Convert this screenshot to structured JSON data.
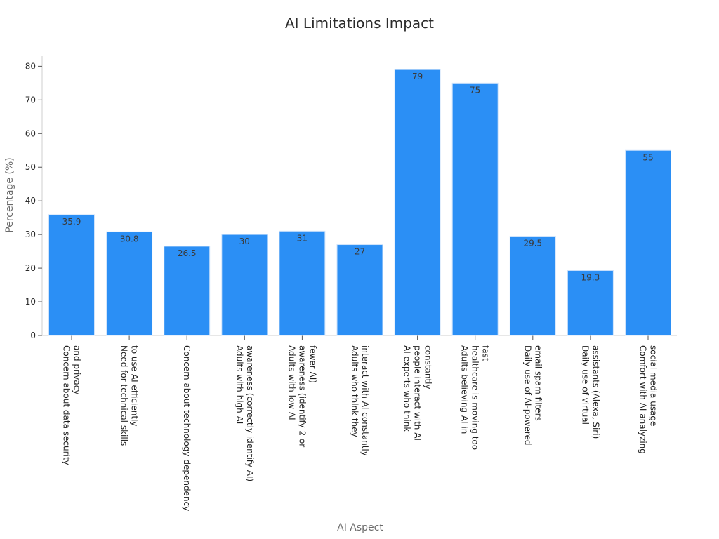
{
  "chart_data": {
    "type": "bar",
    "title": "AI Limitations Impact",
    "xlabel": "AI Aspect",
    "ylabel": "Percentage (%)",
    "ylim": [
      0,
      83
    ],
    "yticks": [
      0,
      10,
      20,
      30,
      40,
      50,
      60,
      70,
      80
    ],
    "grid": false,
    "bar_color": "#2b8ff5",
    "categories": [
      "Concern about data security and privacy",
      "Need for technical skills to use AI efficiently",
      "Concern about technology dependency",
      "Adults with high AI awareness (correctly identify AI)",
      "Adults with low AI awareness (identify 2 or fewer AI)",
      "Adults who think they interact with AI constantly",
      "AI experts who think people interact with AI constantly",
      "Adults believing AI in healthcare is moving too fast",
      "Daily use of AI-powered email spam filters",
      "Daily use of virtual assistants (Alexa, Siri)",
      "Comfort with AI analyzing social media usage"
    ],
    "category_label_lines": [
      [
        "Concern about data security",
        "and privacy"
      ],
      [
        "Need for technical skills",
        "to use AI efficiently"
      ],
      [
        "Concern about technology dependency"
      ],
      [
        "Adults with high AI",
        "awareness (correctly identify AI)"
      ],
      [
        "Adults with low AI",
        "awareness (identify 2 or",
        "fewer AI)"
      ],
      [
        "Adults who think they",
        "interact with AI constantly"
      ],
      [
        "AI experts who think",
        "people interact with AI",
        "constantly"
      ],
      [
        "Adults believing AI in",
        "healthcare is moving too",
        "fast"
      ],
      [
        "Daily use of AI-powered",
        "email spam filters"
      ],
      [
        "Daily use of virtual",
        "assistants (Alexa, Siri)"
      ],
      [
        "Comfort with AI analyzing",
        "social media usage"
      ]
    ],
    "values": [
      35.9,
      30.8,
      26.5,
      30,
      31,
      27,
      79,
      75,
      29.5,
      19.3,
      55
    ],
    "value_labels": [
      "35.9",
      "30.8",
      "26.5",
      "30",
      "31",
      "27",
      "79",
      "75",
      "29.5",
      "19.3",
      "55"
    ]
  }
}
